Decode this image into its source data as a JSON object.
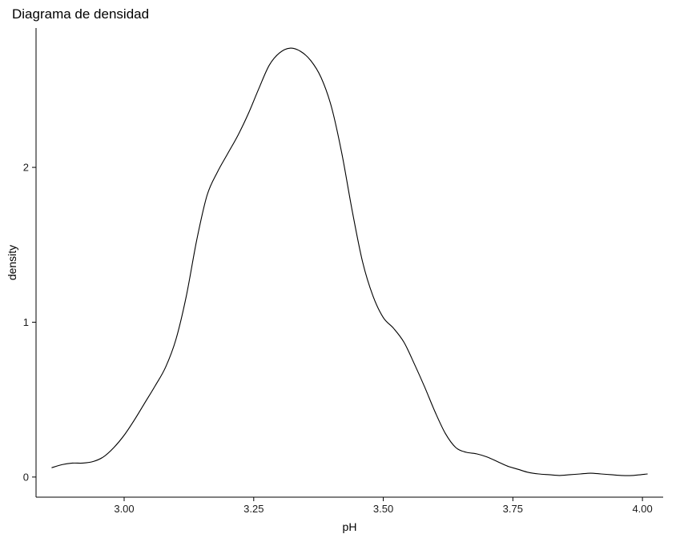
{
  "chart_data": {
    "type": "line",
    "title": "Diagrama de densidad",
    "xlabel": "pH",
    "ylabel": "density",
    "xlim": [
      2.83,
      4.04
    ],
    "ylim": [
      -0.13,
      2.9
    ],
    "x_ticks": [
      3.0,
      3.25,
      3.5,
      3.75,
      4.0
    ],
    "x_tick_labels": [
      "3.00",
      "3.25",
      "3.50",
      "3.75",
      "4.00"
    ],
    "y_ticks": [
      0,
      1,
      2
    ],
    "y_tick_labels": [
      "0",
      "1",
      "2"
    ],
    "grid": false,
    "legend": "none",
    "series": [
      {
        "color": "#000000",
        "x": [
          2.86,
          2.88,
          2.9,
          2.92,
          2.94,
          2.96,
          2.98,
          3.0,
          3.02,
          3.04,
          3.06,
          3.08,
          3.1,
          3.12,
          3.14,
          3.16,
          3.18,
          3.2,
          3.22,
          3.24,
          3.26,
          3.28,
          3.3,
          3.32,
          3.34,
          3.36,
          3.38,
          3.4,
          3.42,
          3.44,
          3.46,
          3.48,
          3.5,
          3.52,
          3.54,
          3.56,
          3.58,
          3.6,
          3.62,
          3.64,
          3.66,
          3.68,
          3.7,
          3.72,
          3.74,
          3.76,
          3.78,
          3.8,
          3.82,
          3.84,
          3.86,
          3.88,
          3.9,
          3.92,
          3.94,
          3.96,
          3.98,
          4.01
        ],
        "y": [
          0.06,
          0.08,
          0.09,
          0.09,
          0.1,
          0.13,
          0.19,
          0.27,
          0.37,
          0.48,
          0.59,
          0.71,
          0.89,
          1.17,
          1.53,
          1.82,
          1.97,
          2.09,
          2.21,
          2.35,
          2.51,
          2.66,
          2.74,
          2.77,
          2.75,
          2.69,
          2.58,
          2.39,
          2.09,
          1.72,
          1.39,
          1.17,
          1.03,
          0.96,
          0.87,
          0.73,
          0.58,
          0.42,
          0.28,
          0.19,
          0.16,
          0.15,
          0.13,
          0.1,
          0.07,
          0.05,
          0.03,
          0.02,
          0.015,
          0.01,
          0.015,
          0.02,
          0.025,
          0.02,
          0.015,
          0.01,
          0.01,
          0.02
        ]
      }
    ]
  }
}
